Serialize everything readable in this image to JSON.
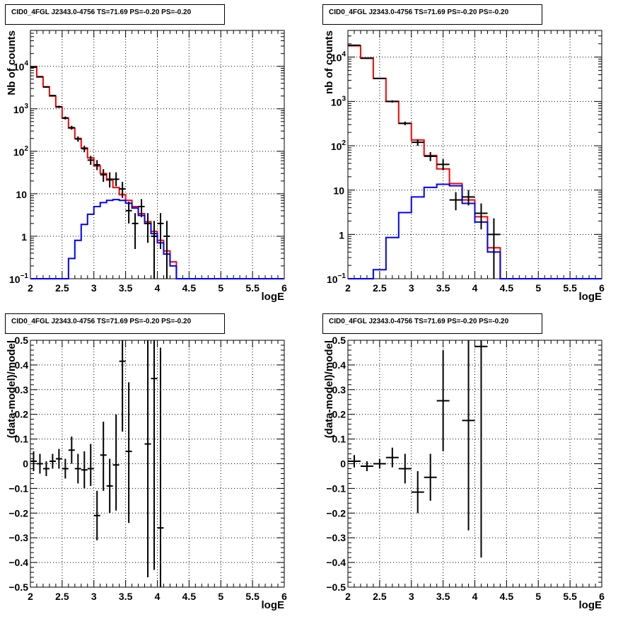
{
  "chart_data": [
    {
      "type": "line",
      "title": "CID0_4FGL J2343.0-4756 TS=71.69 PS=-0.20 PS=-0.20",
      "xlabel": "logE",
      "ylabel": "Nb of counts",
      "xlim": [
        2,
        6
      ],
      "ylim": [
        0.1,
        70000
      ],
      "yscale": "log",
      "grid": true,
      "xticks": [
        "2",
        "2.5",
        "3",
        "3.5",
        "4",
        "4.5",
        "5",
        "5.5",
        "6"
      ],
      "yticks": [
        {
          "value": 0.1,
          "label": "10",
          "sup": "−1"
        },
        {
          "value": 1,
          "label": "1",
          "sup": ""
        },
        {
          "value": 10,
          "label": "10",
          "sup": ""
        },
        {
          "value": 100,
          "label": "10",
          "sup": "2"
        },
        {
          "value": 1000,
          "label": "10",
          "sup": "3"
        },
        {
          "value": 10000,
          "label": "10",
          "sup": "4"
        }
      ],
      "bin_edges": [
        2.0,
        2.1,
        2.2,
        2.3,
        2.4,
        2.5,
        2.6,
        2.7,
        2.8,
        2.9,
        3.0,
        3.1,
        3.2,
        3.3,
        3.4,
        3.5,
        3.6,
        3.7,
        3.8,
        3.9,
        4.0,
        4.1,
        4.2,
        4.3,
        4.4,
        4.5,
        4.6,
        4.7,
        4.8,
        4.9,
        5.0,
        5.1,
        5.2,
        5.3,
        5.4,
        5.5,
        5.6,
        5.7,
        5.8,
        5.9,
        6.0
      ],
      "series": [
        {
          "color": "#ff0000",
          "values": [
            9500,
            5600,
            3300,
            2000,
            1100,
            600,
            350,
            200,
            120,
            70,
            45,
            30,
            21,
            14,
            9.5,
            7,
            5,
            3.4,
            2.2,
            1.3,
            0.8,
            0.45,
            0.25,
            0.1,
            0.1,
            0.1,
            0.1,
            0.1,
            0.1,
            0.1,
            0.1,
            0.1,
            0.1,
            0.1,
            0.1,
            0.1,
            0.1,
            0.1,
            0.1,
            0.1
          ]
        },
        {
          "color": "#0000ff",
          "values": [
            0.1,
            0.1,
            0.1,
            0.1,
            0.1,
            0.1,
            0.3,
            0.8,
            1.9,
            3.3,
            5,
            6.2,
            7,
            7.3,
            7,
            6,
            4.6,
            3.1,
            2,
            1.15,
            0.7,
            0.38,
            0.2,
            0.1,
            0.1,
            0.1,
            0.1,
            0.1,
            0.1,
            0.1,
            0.1,
            0.1,
            0.1,
            0.1,
            0.1,
            0.1,
            0.1,
            0.1,
            0.1,
            0.1
          ]
        }
      ],
      "points": [
        {
          "x": 2.05,
          "y": 9600,
          "lo": 9400,
          "hi": 9800
        },
        {
          "x": 2.15,
          "y": 5700,
          "lo": 5550,
          "hi": 5850
        },
        {
          "x": 2.25,
          "y": 3250,
          "lo": 3140,
          "hi": 3360
        },
        {
          "x": 2.35,
          "y": 2050,
          "lo": 1960,
          "hi": 2140
        },
        {
          "x": 2.45,
          "y": 1120,
          "lo": 1055,
          "hi": 1185
        },
        {
          "x": 2.55,
          "y": 610,
          "lo": 560,
          "hi": 660
        },
        {
          "x": 2.65,
          "y": 360,
          "lo": 322,
          "hi": 398
        },
        {
          "x": 2.75,
          "y": 195,
          "lo": 168,
          "hi": 224
        },
        {
          "x": 2.85,
          "y": 115,
          "lo": 95,
          "hi": 136
        },
        {
          "x": 2.95,
          "y": 62,
          "lo": 48,
          "hi": 78
        },
        {
          "x": 3.05,
          "y": 48,
          "lo": 36,
          "hi": 62
        },
        {
          "x": 3.15,
          "y": 28,
          "lo": 19,
          "hi": 38
        },
        {
          "x": 3.25,
          "y": 22,
          "lo": 14,
          "hi": 32
        },
        {
          "x": 3.35,
          "y": 22,
          "lo": 15,
          "hi": 32
        },
        {
          "x": 3.45,
          "y": 13,
          "lo": 8,
          "hi": 19
        },
        {
          "x": 3.55,
          "y": 4,
          "lo": 2,
          "hi": 6.5
        },
        {
          "x": 3.65,
          "y": 2,
          "lo": 0.5,
          "hi": 3.5
        },
        {
          "x": 3.75,
          "y": 5,
          "lo": 2.8,
          "hi": 7.5
        },
        {
          "x": 3.85,
          "y": 2,
          "lo": 0.7,
          "hi": 3.5
        },
        {
          "x": 3.95,
          "y": 1,
          "lo": 0.1,
          "hi": 2.3
        },
        {
          "x": 4.05,
          "y": 2,
          "lo": 0.5,
          "hi": 3.5
        },
        {
          "x": 4.15,
          "y": 1,
          "lo": 0.1,
          "hi": 2.3
        }
      ]
    },
    {
      "type": "line",
      "title": "CID0_4FGL J2343.0-4756 TS=71.69 PS=-0.20 PS=-0.20",
      "xlabel": "logE",
      "ylabel": "nb of counts",
      "xlim": [
        2,
        6
      ],
      "ylim": [
        0.1,
        40000
      ],
      "yscale": "log",
      "grid": true,
      "xticks": [
        "2",
        "2.5",
        "3",
        "3.5",
        "4",
        "4.5",
        "5",
        "5.5",
        "6"
      ],
      "yticks": [
        {
          "value": 0.1,
          "label": "10",
          "sup": "−1"
        },
        {
          "value": 1,
          "label": "1",
          "sup": ""
        },
        {
          "value": 10,
          "label": "10",
          "sup": ""
        },
        {
          "value": 100,
          "label": "10",
          "sup": "2"
        },
        {
          "value": 1000,
          "label": "10",
          "sup": "3"
        },
        {
          "value": 10000,
          "label": "10",
          "sup": "4"
        }
      ],
      "bin_edges": [
        2.0,
        2.2,
        2.4,
        2.6,
        2.8,
        3.0,
        3.2,
        3.4,
        3.6,
        3.8,
        4.0,
        4.2,
        4.4,
        4.6,
        4.8,
        5.0,
        5.2,
        5.4,
        5.6,
        5.8,
        6.0
      ],
      "series": [
        {
          "color": "#ff0000",
          "values": [
            18000,
            9500,
            3300,
            1000,
            320,
            135,
            60,
            30,
            14,
            6,
            2.5,
            0.5,
            0.1,
            0.1,
            0.1,
            0.1,
            0.1,
            0.1,
            0.1,
            0.1
          ]
        },
        {
          "color": "#0000ff",
          "values": [
            0.1,
            0.1,
            0.16,
            0.85,
            3.1,
            7,
            11.5,
            13.5,
            12.5,
            5,
            1.9,
            0.4,
            0.1,
            0.1,
            0.1,
            0.1,
            0.1,
            0.1,
            0.1,
            0.1
          ]
        }
      ],
      "points": [
        {
          "x": 2.1,
          "y": 18500,
          "lo": 18100,
          "hi": 18900
        },
        {
          "x": 2.3,
          "y": 9400,
          "lo": 9100,
          "hi": 9700
        },
        {
          "x": 2.5,
          "y": 3300,
          "lo": 3180,
          "hi": 3420
        },
        {
          "x": 2.7,
          "y": 1000,
          "lo": 940,
          "hi": 1060
        },
        {
          "x": 2.9,
          "y": 320,
          "lo": 290,
          "hi": 350
        },
        {
          "x": 3.1,
          "y": 120,
          "lo": 100,
          "hi": 140
        },
        {
          "x": 3.3,
          "y": 58,
          "lo": 45,
          "hi": 72
        },
        {
          "x": 3.5,
          "y": 38,
          "lo": 28,
          "hi": 50
        },
        {
          "x": 3.7,
          "y": 6,
          "lo": 3.5,
          "hi": 9
        },
        {
          "x": 3.9,
          "y": 7,
          "lo": 4.5,
          "hi": 10
        },
        {
          "x": 4.1,
          "y": 3,
          "lo": 1.3,
          "hi": 5
        },
        {
          "x": 4.3,
          "y": 1,
          "lo": 0.1,
          "hi": 2.3
        }
      ]
    },
    {
      "type": "scatter",
      "title": "CID0_4FGL J2343.0-4756 TS=71.69 PS=-0.20 PS=-0.20",
      "xlabel": "logE",
      "ylabel": "(data-model)/model",
      "xlim": [
        2,
        6
      ],
      "ylim": [
        -0.5,
        0.5
      ],
      "yscale": "linear",
      "grid": true,
      "xticks": [
        "2",
        "2.5",
        "3",
        "3.5",
        "4",
        "4.5",
        "5",
        "5.5",
        "6"
      ],
      "yticks": [
        "−0.5",
        "−0.4",
        "−0.3",
        "−0.2",
        "−0.1",
        "0",
        "0.1",
        "0.2",
        "0.3",
        "0.4",
        "0.5"
      ],
      "xerr": 0.05,
      "points": [
        {
          "x": 2.05,
          "y": 0.01,
          "lo": -0.03,
          "hi": 0.05
        },
        {
          "x": 2.15,
          "y": 0.0,
          "lo": -0.04,
          "hi": 0.04
        },
        {
          "x": 2.25,
          "y": -0.02,
          "lo": -0.05,
          "hi": 0.01
        },
        {
          "x": 2.35,
          "y": 0.01,
          "lo": -0.02,
          "hi": 0.04
        },
        {
          "x": 2.45,
          "y": 0.02,
          "lo": -0.02,
          "hi": 0.06
        },
        {
          "x": 2.55,
          "y": -0.02,
          "lo": -0.06,
          "hi": 0.02
        },
        {
          "x": 2.65,
          "y": 0.055,
          "lo": 0.0,
          "hi": 0.11
        },
        {
          "x": 2.75,
          "y": -0.02,
          "lo": -0.08,
          "hi": 0.04
        },
        {
          "x": 2.85,
          "y": -0.025,
          "lo": -0.1,
          "hi": 0.05
        },
        {
          "x": 2.95,
          "y": -0.02,
          "lo": -0.09,
          "hi": 0.08
        },
        {
          "x": 3.05,
          "y": -0.21,
          "lo": -0.31,
          "hi": -0.11
        },
        {
          "x": 3.15,
          "y": 0.035,
          "lo": -0.11,
          "hi": 0.17
        },
        {
          "x": 3.25,
          "y": -0.09,
          "lo": -0.2,
          "hi": 0.02
        },
        {
          "x": 3.35,
          "y": -0.005,
          "lo": -0.19,
          "hi": 0.2
        },
        {
          "x": 3.45,
          "y": 0.415,
          "lo": 0.13,
          "hi": 0.5
        },
        {
          "x": 3.55,
          "y": 0.05,
          "lo": -0.24,
          "hi": 0.33
        },
        {
          "x": 3.85,
          "y": 0.08,
          "lo": -0.46,
          "hi": 0.5
        },
        {
          "x": 3.95,
          "y": 0.345,
          "lo": -0.43,
          "hi": 0.5
        },
        {
          "x": 4.05,
          "y": -0.26,
          "lo": -0.5,
          "hi": 0.47
        }
      ]
    },
    {
      "type": "scatter",
      "title": "CID0_4FGL J2343.0-4756 TS=71.69 PS=-0.20 PS=-0.20",
      "xlabel": "logE",
      "ylabel": "(data-model)/model",
      "xlim": [
        2,
        6
      ],
      "ylim": [
        -0.5,
        0.5
      ],
      "yscale": "linear",
      "grid": true,
      "xticks": [
        "2",
        "2.5",
        "3",
        "3.5",
        "4",
        "4.5",
        "5",
        "5.5",
        "6"
      ],
      "yticks": [
        "−0.5",
        "−0.4",
        "−0.3",
        "−0.2",
        "−0.1",
        "0",
        "0.1",
        "0.2",
        "0.3",
        "0.4",
        "0.5"
      ],
      "xerr": 0.1,
      "points": [
        {
          "x": 2.1,
          "y": 0.01,
          "lo": -0.015,
          "hi": 0.035
        },
        {
          "x": 2.3,
          "y": -0.01,
          "lo": -0.03,
          "hi": 0.01
        },
        {
          "x": 2.5,
          "y": 0.0,
          "lo": -0.02,
          "hi": 0.02
        },
        {
          "x": 2.7,
          "y": 0.025,
          "lo": -0.015,
          "hi": 0.065
        },
        {
          "x": 2.9,
          "y": -0.02,
          "lo": -0.08,
          "hi": 0.04
        },
        {
          "x": 3.1,
          "y": -0.115,
          "lo": -0.2,
          "hi": -0.03
        },
        {
          "x": 3.3,
          "y": -0.055,
          "lo": -0.15,
          "hi": 0.04
        },
        {
          "x": 3.5,
          "y": 0.255,
          "lo": 0.05,
          "hi": 0.46
        },
        {
          "x": 3.9,
          "y": 0.175,
          "lo": -0.27,
          "hi": 0.5
        },
        {
          "x": 4.1,
          "y": 0.475,
          "lo": -0.38,
          "hi": 0.5
        }
      ]
    }
  ]
}
